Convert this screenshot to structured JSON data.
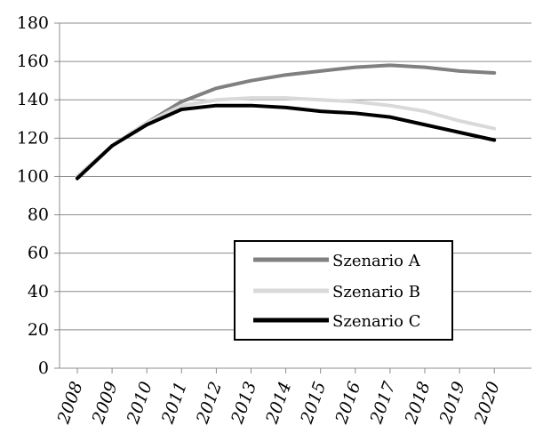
{
  "chart_data": {
    "type": "line",
    "categories": [
      "2008",
      "2009",
      "2010",
      "2011",
      "2012",
      "2013",
      "2014",
      "2015",
      "2016",
      "2017",
      "2018",
      "2019",
      "2020"
    ],
    "ylim": [
      0,
      180
    ],
    "yticks": [
      0,
      20,
      40,
      60,
      80,
      100,
      120,
      140,
      160,
      180
    ],
    "grid": true,
    "legend_position": "center-right",
    "title": "",
    "xlabel": "",
    "ylabel": "",
    "series": [
      {
        "name": "Szenario A",
        "color": "#808080",
        "values": [
          100,
          116,
          128,
          139,
          146,
          150,
          153,
          155,
          157,
          158,
          157,
          155,
          154
        ]
      },
      {
        "name": "Szenario B",
        "color": "#d9d9d9",
        "values": [
          100,
          116,
          128,
          137,
          140,
          141,
          141,
          140,
          139,
          137,
          134,
          129,
          125
        ]
      },
      {
        "name": "Szenario C",
        "color": "#000000",
        "values": [
          99,
          116,
          127,
          135,
          137,
          137,
          136,
          134,
          133,
          131,
          127,
          123,
          119
        ]
      }
    ]
  }
}
